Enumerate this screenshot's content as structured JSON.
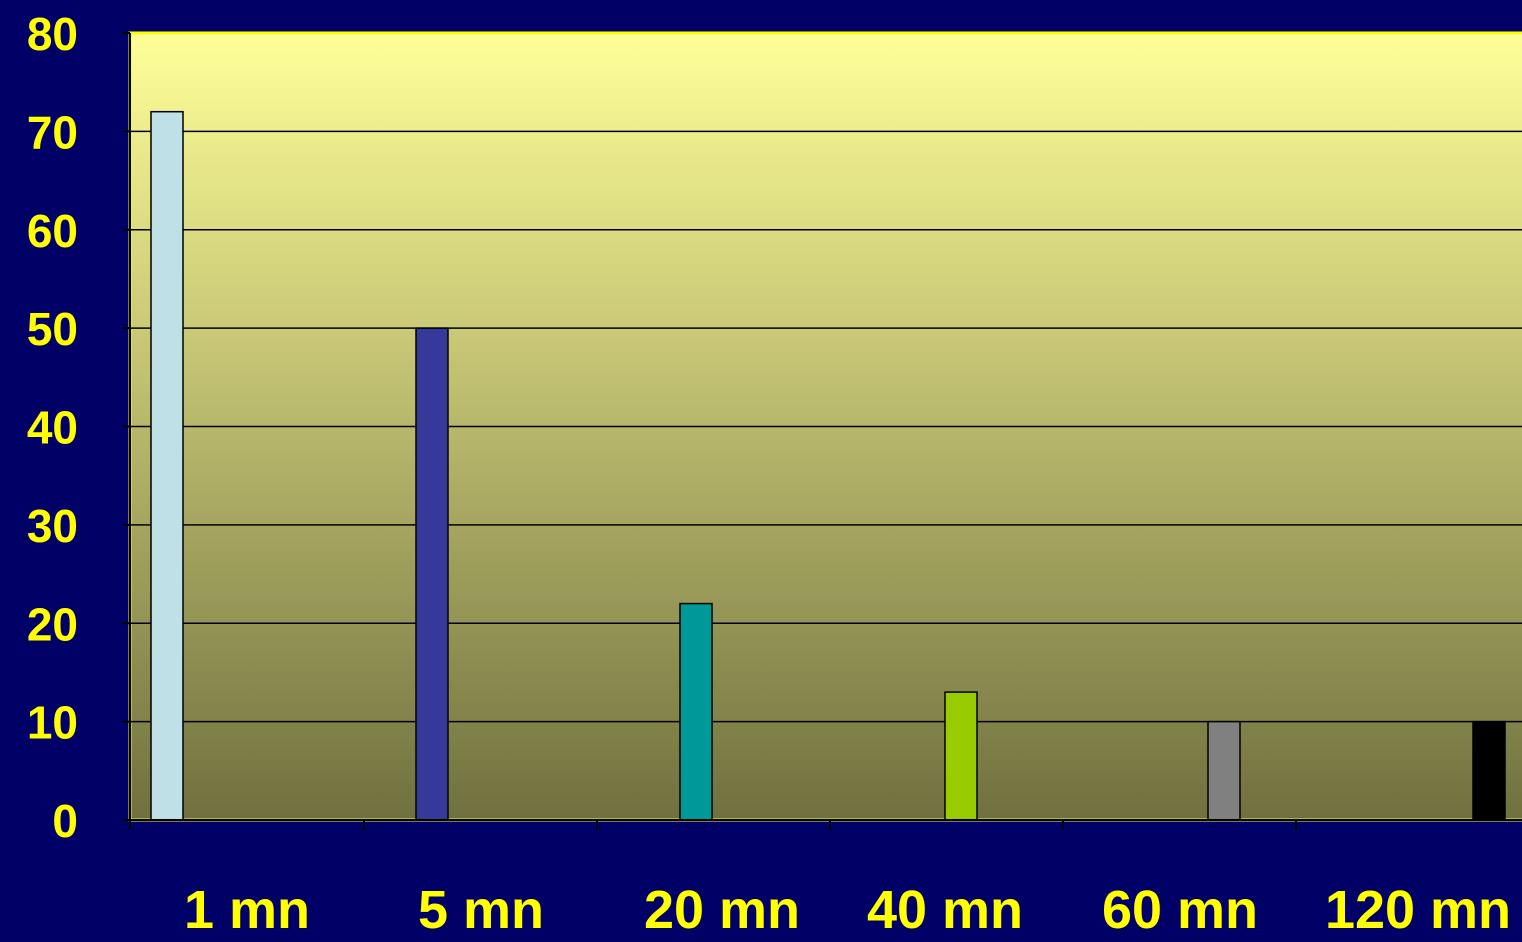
{
  "chart_data": {
    "type": "bar",
    "categories": [
      "1 mn",
      "5 mn",
      "20 mn",
      "40 mn",
      "60 mn",
      "120 mn"
    ],
    "values": [
      72,
      50,
      22,
      13,
      10,
      10
    ],
    "bar_colors": [
      "#BFE0E6",
      "#36399A",
      "#009999",
      "#99CC00",
      "#808080",
      "#000000"
    ],
    "ylim": [
      0,
      80
    ],
    "yticks": [
      "0",
      "10",
      "20",
      "30",
      "40",
      "50",
      "60",
      "70",
      "80"
    ],
    "grid": true,
    "legend": "none",
    "title": "",
    "xlabel": "",
    "ylabel": ""
  },
  "colors": {
    "background": "#000066",
    "plot_top": "#FFFF99",
    "plot_bottom": "#70703F",
    "axis_text": "#FFFF00",
    "gridline": "#000000"
  }
}
